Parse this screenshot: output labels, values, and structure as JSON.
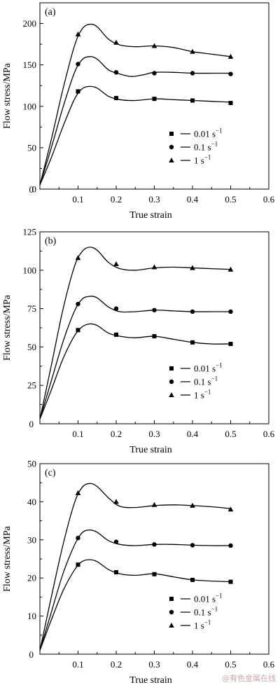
{
  "chart_data": [
    {
      "type": "line",
      "panel_label": "(a)",
      "xlabel": "True strain",
      "ylabel": "Flow stress/MPa",
      "xlim": [
        0,
        0.6
      ],
      "ylim": [
        0,
        225
      ],
      "xticks": [
        0.1,
        0.2,
        0.3,
        0.4,
        0.5,
        0.6
      ],
      "xtick_labels": [
        "0.1",
        "0.2",
        "0.3",
        "0.4",
        "0.5",
        "0.6"
      ],
      "yticks": [
        0,
        50,
        100,
        150,
        200
      ],
      "ytick_labels": [
        "0",
        "50",
        "100",
        "150",
        "200"
      ],
      "origin_label": "0",
      "legend_position": "bottom-right",
      "series": [
        {
          "name": "0.01 s",
          "marker": "square",
          "curve": [
            [
              0,
              5
            ],
            [
              0.03,
              38
            ],
            [
              0.06,
              75
            ],
            [
              0.09,
              108
            ],
            [
              0.11,
              121
            ],
            [
              0.13,
              124
            ],
            [
              0.15,
              122
            ],
            [
              0.18,
              112
            ],
            [
              0.21,
              108
            ],
            [
              0.25,
              107
            ],
            [
              0.3,
              109
            ],
            [
              0.35,
              108
            ],
            [
              0.4,
              107
            ],
            [
              0.45,
              106
            ],
            [
              0.5,
              105
            ]
          ],
          "points": [
            [
              0.1,
              118
            ],
            [
              0.2,
              110
            ],
            [
              0.3,
              109
            ],
            [
              0.4,
              107
            ],
            [
              0.5,
              104
            ]
          ]
        },
        {
          "name": "0.1 s",
          "marker": "circle",
          "curve": [
            [
              0,
              5
            ],
            [
              0.03,
              50
            ],
            [
              0.06,
              98
            ],
            [
              0.09,
              140
            ],
            [
              0.11,
              156
            ],
            [
              0.13,
              160
            ],
            [
              0.15,
              157
            ],
            [
              0.18,
              144
            ],
            [
              0.21,
              139
            ],
            [
              0.24,
              136
            ],
            [
              0.27,
              138
            ],
            [
              0.3,
              141
            ],
            [
              0.35,
              141
            ],
            [
              0.4,
              140
            ],
            [
              0.45,
              140
            ],
            [
              0.5,
              140
            ]
          ],
          "points": [
            [
              0.1,
              151
            ],
            [
              0.2,
              141
            ],
            [
              0.3,
              140
            ],
            [
              0.4,
              140
            ],
            [
              0.5,
              139
            ]
          ]
        },
        {
          "name": "1 s",
          "marker": "triangle",
          "curve": [
            [
              0,
              5
            ],
            [
              0.03,
              60
            ],
            [
              0.06,
              120
            ],
            [
              0.09,
              172
            ],
            [
              0.11,
              193
            ],
            [
              0.13,
              199
            ],
            [
              0.15,
              196
            ],
            [
              0.18,
              181
            ],
            [
              0.21,
              174
            ],
            [
              0.25,
              172
            ],
            [
              0.3,
              173
            ],
            [
              0.35,
              171
            ],
            [
              0.4,
              166
            ],
            [
              0.45,
              163
            ],
            [
              0.5,
              160
            ]
          ],
          "points": [
            [
              0.1,
              187
            ],
            [
              0.2,
              177
            ],
            [
              0.3,
              173
            ],
            [
              0.4,
              166
            ],
            [
              0.5,
              160
            ]
          ]
        }
      ]
    },
    {
      "type": "line",
      "panel_label": "(b)",
      "xlabel": "True strain",
      "ylabel": "Flow stress/MPa",
      "xlim": [
        0,
        0.6
      ],
      "ylim": [
        0,
        125
      ],
      "xticks": [
        0.1,
        0.2,
        0.3,
        0.4,
        0.5,
        0.6
      ],
      "xtick_labels": [
        "0.1",
        "0.2",
        "0.3",
        "0.4",
        "0.5",
        "0.6"
      ],
      "yticks": [
        25,
        50,
        75,
        100,
        125
      ],
      "ytick_labels": [
        "25",
        "50",
        "75",
        "100",
        "125"
      ],
      "origin_label": "0",
      "legend_position": "bottom-right",
      "series": [
        {
          "name": "0.01 s",
          "marker": "square",
          "curve": [
            [
              0,
              3
            ],
            [
              0.03,
              22
            ],
            [
              0.06,
              42
            ],
            [
              0.09,
              57
            ],
            [
              0.11,
              63
            ],
            [
              0.13,
              65
            ],
            [
              0.15,
              64
            ],
            [
              0.18,
              59
            ],
            [
              0.21,
              57
            ],
            [
              0.25,
              56
            ],
            [
              0.3,
              57
            ],
            [
              0.35,
              55
            ],
            [
              0.4,
              53
            ],
            [
              0.45,
              52
            ],
            [
              0.5,
              52
            ]
          ],
          "points": [
            [
              0.1,
              61
            ],
            [
              0.2,
              58
            ],
            [
              0.3,
              57
            ],
            [
              0.4,
              53
            ],
            [
              0.5,
              52
            ]
          ]
        },
        {
          "name": "0.1 s",
          "marker": "circle",
          "curve": [
            [
              0,
              3
            ],
            [
              0.03,
              28
            ],
            [
              0.06,
              53
            ],
            [
              0.09,
              73
            ],
            [
              0.11,
              81
            ],
            [
              0.13,
              83
            ],
            [
              0.15,
              82
            ],
            [
              0.18,
              76
            ],
            [
              0.21,
              73
            ],
            [
              0.25,
              73
            ],
            [
              0.3,
              74
            ],
            [
              0.35,
              73.5
            ],
            [
              0.4,
              73
            ],
            [
              0.45,
              73
            ],
            [
              0.5,
              73
            ]
          ],
          "points": [
            [
              0.1,
              78
            ],
            [
              0.2,
              75
            ],
            [
              0.3,
              74
            ],
            [
              0.4,
              73
            ],
            [
              0.5,
              73
            ]
          ]
        },
        {
          "name": "1 s",
          "marker": "triangle",
          "curve": [
            [
              0,
              3
            ],
            [
              0.03,
              38
            ],
            [
              0.06,
              74
            ],
            [
              0.09,
              102
            ],
            [
              0.11,
              112
            ],
            [
              0.13,
              115
            ],
            [
              0.15,
              113
            ],
            [
              0.18,
              105
            ],
            [
              0.21,
              101
            ],
            [
              0.25,
              100
            ],
            [
              0.3,
              101.5
            ],
            [
              0.35,
              102
            ],
            [
              0.4,
              101.5
            ],
            [
              0.45,
              101
            ],
            [
              0.5,
              100.5
            ]
          ],
          "points": [
            [
              0.1,
              108
            ],
            [
              0.2,
              104
            ],
            [
              0.3,
              102
            ],
            [
              0.4,
              101.5
            ],
            [
              0.5,
              100.5
            ]
          ]
        }
      ]
    },
    {
      "type": "line",
      "panel_label": "(c)",
      "xlabel": "True strain",
      "ylabel": "Flow stress/MPa",
      "xlim": [
        0,
        0.6
      ],
      "ylim": [
        0,
        50
      ],
      "xticks": [
        0.1,
        0.2,
        0.3,
        0.4,
        0.5,
        0.6
      ],
      "xtick_labels": [
        "0.1",
        "0.2",
        "0.3",
        "0.4",
        "0.5",
        "0.6"
      ],
      "yticks": [
        10,
        20,
        30,
        40,
        50
      ],
      "ytick_labels": [
        "10",
        "20",
        "30",
        "40",
        "50"
      ],
      "origin_label": "0",
      "legend_position": "bottom-right",
      "series": [
        {
          "name": "0.01 s",
          "marker": "square",
          "curve": [
            [
              0,
              1
            ],
            [
              0.03,
              9
            ],
            [
              0.06,
              16.5
            ],
            [
              0.09,
              22
            ],
            [
              0.11,
              24.3
            ],
            [
              0.13,
              24.8
            ],
            [
              0.15,
              24.3
            ],
            [
              0.18,
              22.2
            ],
            [
              0.21,
              21.1
            ],
            [
              0.25,
              20.7
            ],
            [
              0.3,
              21.1
            ],
            [
              0.35,
              20.3
            ],
            [
              0.4,
              19.5
            ],
            [
              0.45,
              19.2
            ],
            [
              0.5,
              19
            ]
          ],
          "points": [
            [
              0.1,
              23.5
            ],
            [
              0.2,
              21.5
            ],
            [
              0.3,
              21
            ],
            [
              0.4,
              19.5
            ],
            [
              0.5,
              19
            ]
          ]
        },
        {
          "name": "0.1 s",
          "marker": "circle",
          "curve": [
            [
              0,
              1
            ],
            [
              0.03,
              11
            ],
            [
              0.06,
              21
            ],
            [
              0.09,
              28.5
            ],
            [
              0.11,
              31.8
            ],
            [
              0.13,
              32.6
            ],
            [
              0.15,
              32
            ],
            [
              0.18,
              29.8
            ],
            [
              0.21,
              28.8
            ],
            [
              0.25,
              28.5
            ],
            [
              0.3,
              28.8
            ],
            [
              0.35,
              28.8
            ],
            [
              0.4,
              28.6
            ],
            [
              0.45,
              28.5
            ],
            [
              0.5,
              28.5
            ]
          ],
          "points": [
            [
              0.1,
              30.5
            ],
            [
              0.2,
              29.5
            ],
            [
              0.3,
              28.8
            ],
            [
              0.4,
              28.6
            ],
            [
              0.5,
              28.5
            ]
          ]
        },
        {
          "name": "1 s",
          "marker": "triangle",
          "curve": [
            [
              0,
              1
            ],
            [
              0.03,
              15
            ],
            [
              0.06,
              28.5
            ],
            [
              0.09,
              39.5
            ],
            [
              0.11,
              43.7
            ],
            [
              0.13,
              44.8
            ],
            [
              0.15,
              44
            ],
            [
              0.18,
              41
            ],
            [
              0.21,
              38.8
            ],
            [
              0.25,
              38.5
            ],
            [
              0.3,
              39
            ],
            [
              0.35,
              39.2
            ],
            [
              0.4,
              39
            ],
            [
              0.45,
              38.7
            ],
            [
              0.5,
              38.2
            ]
          ],
          "points": [
            [
              0.1,
              42.3
            ],
            [
              0.2,
              40
            ],
            [
              0.3,
              39.2
            ],
            [
              0.4,
              39
            ],
            [
              0.5,
              38
            ]
          ]
        }
      ]
    }
  ],
  "legend_superscript": "−1",
  "watermark": "@有色金属在线"
}
